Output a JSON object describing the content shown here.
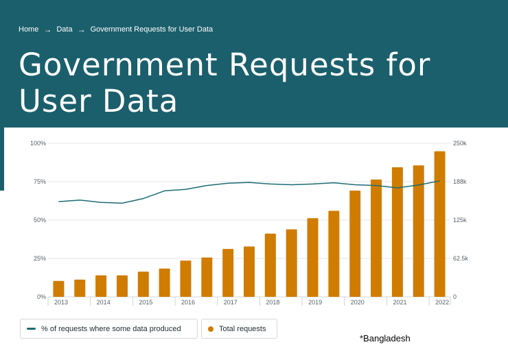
{
  "breadcrumb": {
    "items": [
      "Home",
      "Data",
      "Government Requests for User Data"
    ]
  },
  "page": {
    "title": "Government Requests for User Data"
  },
  "legend": {
    "line_label": "% of requests where some data produced",
    "bar_label": "Total requests"
  },
  "note": "*Bangladesh",
  "colors": {
    "hero": "#1b5f6c",
    "bar": "#d07c00",
    "line": "#1b6b73"
  },
  "chart_data": {
    "type": "bar",
    "x_tick_labels": [
      "2013",
      "2014",
      "2015",
      "2016",
      "2017",
      "2018",
      "2019",
      "2020",
      "2021",
      "2022"
    ],
    "categories": [
      "2013 H1",
      "2013 H2",
      "2014 H1",
      "2014 H2",
      "2015 H1",
      "2015 H2",
      "2016 H1",
      "2016 H2",
      "2017 H1",
      "2017 H2",
      "2018 H1",
      "2018 H2",
      "2019 H1",
      "2019 H2",
      "2020 H1",
      "2020 H2",
      "2021 H1",
      "2021 H2",
      "2022 H1"
    ],
    "series": [
      {
        "name": "Total requests",
        "type": "bar",
        "axis": "right",
        "values": [
          26000,
          28000,
          35000,
          35000,
          41000,
          46000,
          59000,
          64000,
          78000,
          82000,
          103000,
          110000,
          128000,
          140000,
          173000,
          191000,
          211000,
          214000,
          237000
        ]
      },
      {
        "name": "% of requests where some data produced",
        "type": "line",
        "axis": "left",
        "values": [
          62,
          63,
          61.5,
          61,
          64,
          69,
          70,
          72.5,
          74,
          74.5,
          73.5,
          73,
          73.5,
          74.3,
          73,
          72.5,
          71,
          72.8,
          75.5
        ]
      }
    ],
    "y_left": {
      "ticks": [
        "0%",
        "25%",
        "50%",
        "75%",
        "100%"
      ],
      "range": [
        0,
        100
      ]
    },
    "y_right": {
      "ticks": [
        "0",
        "62.5k",
        "125k",
        "188k",
        "250k"
      ],
      "range": [
        0,
        250000
      ]
    },
    "grid": true,
    "legend_position": "bottom-left"
  }
}
